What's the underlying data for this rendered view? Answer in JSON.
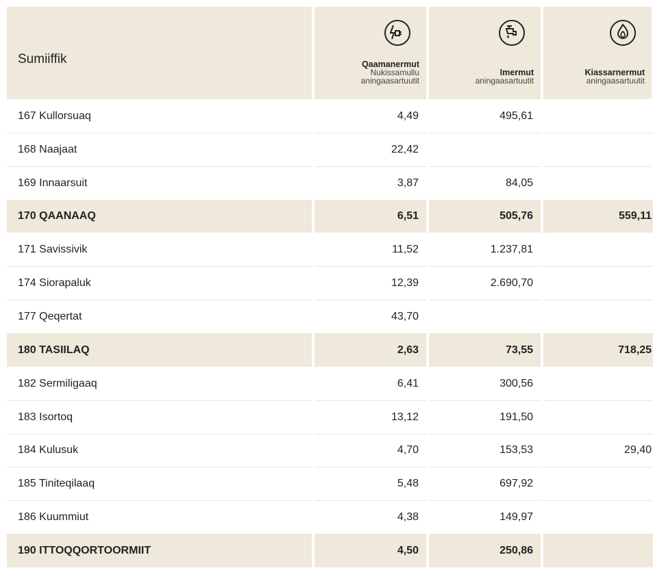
{
  "table": {
    "header": {
      "title": "Sumiiffik",
      "columns": [
        {
          "title": "Qaamanermut",
          "lines": [
            "Nukissamullu",
            "aningaasartuutit"
          ]
        },
        {
          "title": "Imermut",
          "lines": [
            "aningaasartuutit"
          ]
        },
        {
          "title": "Kiassarnermut",
          "lines": [
            "aningaasartuutit"
          ]
        }
      ]
    },
    "rows": [
      {
        "name": "167 Kullorsuaq",
        "bold": false,
        "values": [
          "4,49",
          "495,61",
          null
        ]
      },
      {
        "name": "168 Naajaat",
        "bold": false,
        "values": [
          "22,42",
          null,
          null
        ]
      },
      {
        "name": "169 Innaarsuit",
        "bold": false,
        "values": [
          "3,87",
          "84,05",
          null
        ]
      },
      {
        "name": "170 QAANAAQ",
        "bold": true,
        "values": [
          "6,51",
          "505,76",
          "559,11"
        ]
      },
      {
        "name": "171 Savissivik",
        "bold": false,
        "values": [
          "11,52",
          "1.237,81",
          null
        ]
      },
      {
        "name": "174 Siorapaluk",
        "bold": false,
        "values": [
          "12,39",
          "2.690,70",
          null
        ]
      },
      {
        "name": "177 Qeqertat",
        "bold": false,
        "values": [
          "43,70",
          null,
          null
        ]
      },
      {
        "name": "180 TASIILAQ",
        "bold": true,
        "values": [
          "2,63",
          "73,55",
          "718,25"
        ]
      },
      {
        "name": "182 Sermiligaaq",
        "bold": false,
        "values": [
          "6,41",
          "300,56",
          null
        ]
      },
      {
        "name": "183 Isortoq",
        "bold": false,
        "values": [
          "13,12",
          "191,50",
          null
        ]
      },
      {
        "name": "184 Kulusuk",
        "bold": false,
        "values": [
          "4,70",
          "153,53",
          "29,40"
        ]
      },
      {
        "name": "185 Tiniteqilaaq",
        "bold": false,
        "values": [
          "5,48",
          "697,92",
          null
        ]
      },
      {
        "name": "186 Kuummiut",
        "bold": false,
        "values": [
          "4,38",
          "149,97",
          null
        ]
      },
      {
        "name": "190 ITTOQQORTOORMIIT",
        "bold": true,
        "values": [
          "4,50",
          "250,86",
          null
        ]
      }
    ]
  }
}
